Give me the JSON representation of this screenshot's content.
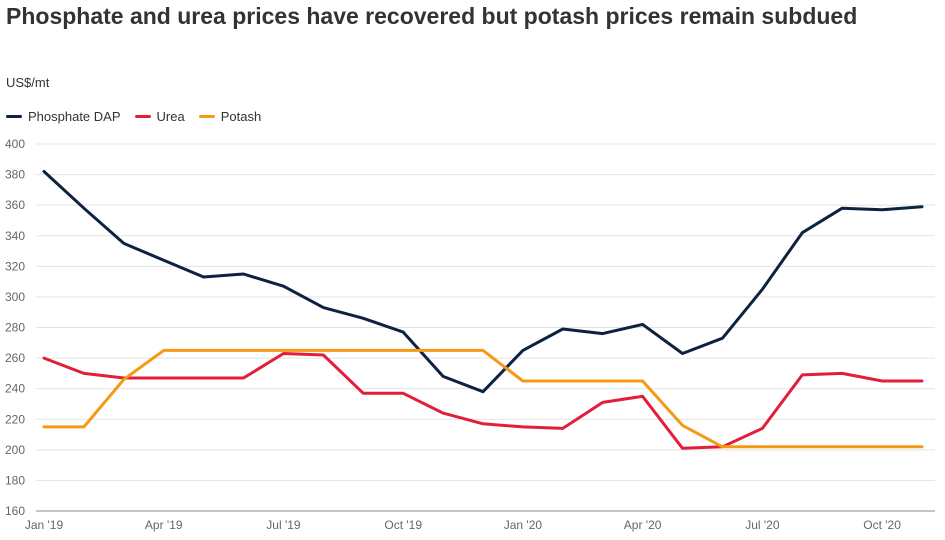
{
  "chart_data": {
    "type": "line",
    "title": "Phosphate and urea prices have recovered but potash prices remain subdued",
    "ylabel": "US$/mt",
    "xlabel": "",
    "ylim": [
      160,
      400
    ],
    "yticks": [
      160,
      180,
      200,
      220,
      240,
      260,
      280,
      300,
      320,
      340,
      360,
      380,
      400
    ],
    "grid": true,
    "legend_position": "top-left",
    "x": [
      "Jan '19",
      "Feb '19",
      "Mar '19",
      "Apr '19",
      "May '19",
      "Jun '19",
      "Jul '19",
      "Aug '19",
      "Sep '19",
      "Oct '19",
      "Nov '19",
      "Dec '19",
      "Jan '20",
      "Feb '20",
      "Mar '20",
      "Apr '20",
      "May '20",
      "Jun '20",
      "Jul '20",
      "Aug '20",
      "Sep '20",
      "Oct '20",
      "Nov '20"
    ],
    "xtick_labels": [
      {
        "index": 0,
        "label": "Jan '19"
      },
      {
        "index": 3,
        "label": "Apr '19"
      },
      {
        "index": 6,
        "label": "Jul '19"
      },
      {
        "index": 9,
        "label": "Oct '19"
      },
      {
        "index": 12,
        "label": "Jan '20"
      },
      {
        "index": 15,
        "label": "Apr '20"
      },
      {
        "index": 18,
        "label": "Jul '20"
      },
      {
        "index": 21,
        "label": "Oct '20"
      }
    ],
    "series": [
      {
        "name": "Phosphate DAP",
        "color": "#0d2240",
        "values": [
          382,
          358,
          335,
          324,
          313,
          315,
          307,
          293,
          286,
          277,
          248,
          238,
          265,
          279,
          276,
          282,
          263,
          273,
          305,
          342,
          358,
          357,
          359
        ]
      },
      {
        "name": "Urea",
        "color": "#e31e3a",
        "values": [
          260,
          250,
          247,
          247,
          247,
          247,
          263,
          262,
          237,
          237,
          224,
          217,
          215,
          214,
          231,
          235,
          201,
          202,
          214,
          249,
          250,
          245,
          245
        ]
      },
      {
        "name": "Potash",
        "color": "#f59a14",
        "values": [
          215,
          215,
          246,
          265,
          265,
          265,
          265,
          265,
          265,
          265,
          265,
          265,
          245,
          245,
          245,
          245,
          216,
          202,
          202,
          202,
          202,
          202,
          202
        ]
      }
    ]
  }
}
